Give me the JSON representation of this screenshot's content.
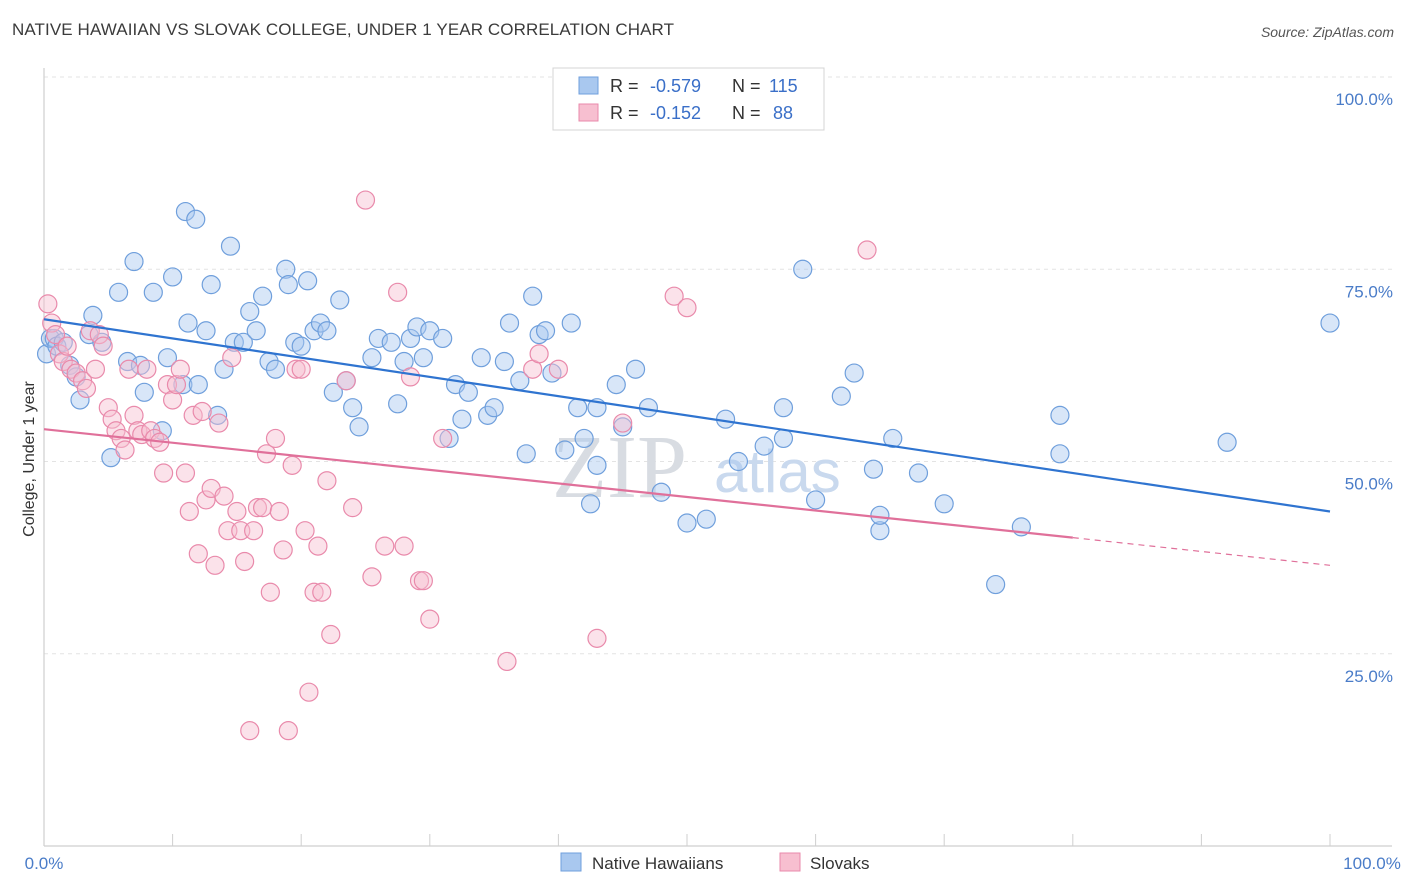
{
  "title": "NATIVE HAWAIIAN VS SLOVAK COLLEGE, UNDER 1 YEAR CORRELATION CHART",
  "source": "Source: ZipAtlas.com",
  "watermark": {
    "zip": "ZIP",
    "atlas": "atlas"
  },
  "legend": {
    "r_label": "R =",
    "n_label": "N =",
    "rows": [
      {
        "r": "-0.579",
        "n": "115",
        "color": "#a9c8ef",
        "stroke": "#6f9fdc"
      },
      {
        "r": "-0.152",
        "n": "88",
        "color": "#f7bfd0",
        "stroke": "#e98aab"
      }
    ]
  },
  "bottom_legend": [
    {
      "label": "Native Hawaiians",
      "color": "#a9c8ef",
      "stroke": "#6f9fdc"
    },
    {
      "label": "Slovaks",
      "color": "#f7bfd0",
      "stroke": "#e98aab"
    }
  ],
  "chart_data": {
    "type": "scatter",
    "title": "NATIVE HAWAIIAN VS SLOVAK COLLEGE, UNDER 1 YEAR CORRELATION CHART",
    "xlabel": "",
    "ylabel": "College, Under 1 year",
    "xlim": [
      0,
      100
    ],
    "ylim": [
      0,
      100
    ],
    "x_tick_labels": [
      "0.0%",
      "100.0%"
    ],
    "y_tick_labels": [
      "25.0%",
      "50.0%",
      "75.0%",
      "100.0%"
    ],
    "y_ticks": [
      25,
      50,
      75,
      100
    ],
    "grid": true,
    "series": [
      {
        "name": "Native Hawaiians",
        "color": "#6f9fdc",
        "fill": "#a9c8ef",
        "line_color": "#2f74d0",
        "trend": {
          "x0": 0,
          "y0": 68.5,
          "x1": 100,
          "y1": 43.5
        },
        "points": [
          [
            0.2,
            64
          ],
          [
            0.5,
            66
          ],
          [
            0.8,
            66
          ],
          [
            1,
            65
          ],
          [
            1.5,
            65.5
          ],
          [
            2,
            62.5
          ],
          [
            2.5,
            61
          ],
          [
            2.8,
            58
          ],
          [
            3.5,
            66.5
          ],
          [
            3.8,
            69
          ],
          [
            4.5,
            65.5
          ],
          [
            5.2,
            50.5
          ],
          [
            5.8,
            72
          ],
          [
            6.5,
            63
          ],
          [
            7,
            76
          ],
          [
            7.5,
            62.5
          ],
          [
            7.8,
            59
          ],
          [
            8.5,
            72
          ],
          [
            9.2,
            54
          ],
          [
            9.6,
            63.5
          ],
          [
            10,
            74
          ],
          [
            10.8,
            60
          ],
          [
            11,
            82.5
          ],
          [
            11.2,
            68
          ],
          [
            11.8,
            81.5
          ],
          [
            12,
            60
          ],
          [
            12.6,
            67
          ],
          [
            13,
            73
          ],
          [
            13.5,
            56
          ],
          [
            14,
            62
          ],
          [
            14.5,
            78
          ],
          [
            14.8,
            65.5
          ],
          [
            15.5,
            65.5
          ],
          [
            16,
            69.5
          ],
          [
            16.5,
            67
          ],
          [
            17,
            71.5
          ],
          [
            17.5,
            63
          ],
          [
            18,
            62
          ],
          [
            18.8,
            75
          ],
          [
            19,
            73
          ],
          [
            19.5,
            65.5
          ],
          [
            20,
            65
          ],
          [
            20.5,
            73.5
          ],
          [
            21,
            67
          ],
          [
            21.5,
            68
          ],
          [
            22,
            67
          ],
          [
            22.5,
            59
          ],
          [
            23,
            71
          ],
          [
            23.5,
            60.5
          ],
          [
            24,
            57
          ],
          [
            24.5,
            54.5
          ],
          [
            25.5,
            63.5
          ],
          [
            26,
            66
          ],
          [
            27,
            65.5
          ],
          [
            27.5,
            57.5
          ],
          [
            28,
            63
          ],
          [
            28.5,
            66
          ],
          [
            29,
            67.5
          ],
          [
            29.5,
            63.5
          ],
          [
            30,
            67
          ],
          [
            31,
            66
          ],
          [
            31.5,
            53
          ],
          [
            32,
            60
          ],
          [
            32.5,
            55.5
          ],
          [
            33,
            59
          ],
          [
            34,
            63.5
          ],
          [
            34.5,
            56
          ],
          [
            35,
            57
          ],
          [
            35.8,
            63
          ],
          [
            36.2,
            68
          ],
          [
            37,
            60.5
          ],
          [
            37.5,
            51
          ],
          [
            38,
            71.5
          ],
          [
            38.5,
            66.5
          ],
          [
            39,
            67
          ],
          [
            39.5,
            61.5
          ],
          [
            40.5,
            51.5
          ],
          [
            41,
            68
          ],
          [
            41.5,
            57
          ],
          [
            42,
            53
          ],
          [
            42.5,
            44.5
          ],
          [
            43,
            57
          ],
          [
            43,
            49.5
          ],
          [
            44.5,
            60
          ],
          [
            45,
            54.5
          ],
          [
            46,
            62
          ],
          [
            47,
            57
          ],
          [
            48,
            46
          ],
          [
            50,
            42
          ],
          [
            51.5,
            42.5
          ],
          [
            53,
            55.5
          ],
          [
            54,
            50
          ],
          [
            56,
            52
          ],
          [
            57.5,
            57
          ],
          [
            57.5,
            53
          ],
          [
            59,
            75
          ],
          [
            60,
            45
          ],
          [
            62,
            58.5
          ],
          [
            63,
            61.5
          ],
          [
            64.5,
            49
          ],
          [
            65,
            41
          ],
          [
            65,
            43
          ],
          [
            66,
            53
          ],
          [
            68,
            48.5
          ],
          [
            70,
            44.5
          ],
          [
            74,
            34
          ],
          [
            76,
            41.5
          ],
          [
            79,
            56
          ],
          [
            79,
            51
          ],
          [
            92,
            52.5
          ],
          [
            100,
            68
          ]
        ]
      },
      {
        "name": "Slovaks",
        "color": "#e98aab",
        "fill": "#f7bfd0",
        "line_color": "#e0709a",
        "trend": {
          "x0": 0,
          "y0": 54.2,
          "x1": 80,
          "y1": 40.1,
          "x_dash_end": 100,
          "y_dash_end": 36.5
        },
        "points": [
          [
            0.3,
            70.5
          ],
          [
            0.6,
            68
          ],
          [
            0.9,
            66.5
          ],
          [
            1.2,
            64
          ],
          [
            1.5,
            63
          ],
          [
            1.8,
            65
          ],
          [
            2.1,
            62
          ],
          [
            2.5,
            61.5
          ],
          [
            3,
            60.5
          ],
          [
            3.3,
            59.5
          ],
          [
            3.6,
            67
          ],
          [
            4,
            62
          ],
          [
            4.3,
            66.5
          ],
          [
            4.6,
            65
          ],
          [
            5,
            57
          ],
          [
            5.3,
            55.5
          ],
          [
            5.6,
            54
          ],
          [
            6,
            53
          ],
          [
            6.3,
            51.5
          ],
          [
            6.6,
            62
          ],
          [
            7,
            56
          ],
          [
            7.3,
            54
          ],
          [
            7.6,
            53.5
          ],
          [
            8,
            62
          ],
          [
            8.3,
            54
          ],
          [
            8.6,
            53
          ],
          [
            9,
            52.5
          ],
          [
            9.3,
            48.5
          ],
          [
            9.6,
            60
          ],
          [
            10,
            58
          ],
          [
            10.3,
            60
          ],
          [
            10.6,
            62
          ],
          [
            11,
            48.5
          ],
          [
            11.3,
            43.5
          ],
          [
            11.6,
            56
          ],
          [
            12,
            38
          ],
          [
            12.3,
            56.5
          ],
          [
            12.6,
            45
          ],
          [
            13,
            46.5
          ],
          [
            13.3,
            36.5
          ],
          [
            13.6,
            55
          ],
          [
            14,
            45.5
          ],
          [
            14.3,
            41
          ],
          [
            14.6,
            63.5
          ],
          [
            15,
            43.5
          ],
          [
            15.3,
            41
          ],
          [
            15.6,
            37
          ],
          [
            16,
            15
          ],
          [
            16.3,
            41
          ],
          [
            16.6,
            44
          ],
          [
            17,
            44
          ],
          [
            17.3,
            51
          ],
          [
            17.6,
            33
          ],
          [
            18,
            53
          ],
          [
            18.3,
            43.5
          ],
          [
            18.6,
            38.5
          ],
          [
            19,
            15
          ],
          [
            19.3,
            49.5
          ],
          [
            19.6,
            62
          ],
          [
            20,
            62
          ],
          [
            20.3,
            41
          ],
          [
            20.6,
            20
          ],
          [
            21,
            33
          ],
          [
            21.3,
            39
          ],
          [
            21.6,
            33
          ],
          [
            22,
            47.5
          ],
          [
            22.3,
            27.5
          ],
          [
            23.5,
            60.5
          ],
          [
            24,
            44
          ],
          [
            25,
            84
          ],
          [
            25.5,
            35
          ],
          [
            26.5,
            39
          ],
          [
            27.5,
            72
          ],
          [
            28,
            39
          ],
          [
            28.5,
            61
          ],
          [
            29.2,
            34.5
          ],
          [
            29.5,
            34.5
          ],
          [
            30,
            29.5
          ],
          [
            31,
            53
          ],
          [
            36,
            24
          ],
          [
            38,
            62
          ],
          [
            38.5,
            64
          ],
          [
            43,
            27
          ],
          [
            49,
            71.5
          ],
          [
            50,
            70
          ],
          [
            64,
            77.5
          ],
          [
            40,
            62
          ],
          [
            45,
            55
          ]
        ]
      }
    ]
  }
}
